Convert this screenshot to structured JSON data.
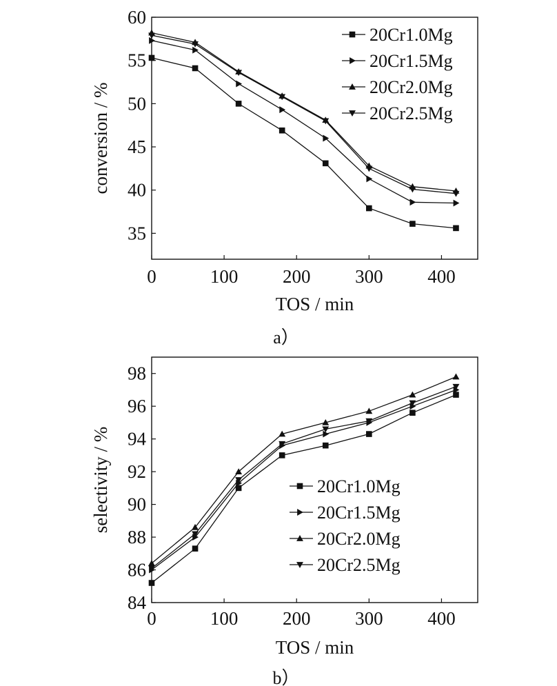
{
  "chart_data": [
    {
      "type": "line",
      "panel_label": "a）",
      "xlabel": "TOS / min",
      "ylabel": "conversion / %",
      "xlim": [
        0,
        450
      ],
      "ylim": [
        32,
        60
      ],
      "xticks": [
        0,
        100,
        200,
        300,
        400
      ],
      "yticks": [
        35,
        40,
        45,
        50,
        55,
        60
      ],
      "legend_position": "top-right",
      "x": [
        0,
        60,
        120,
        180,
        240,
        300,
        360,
        420
      ],
      "series": [
        {
          "name": "20Cr1.0Mg",
          "marker": "square",
          "values": [
            55.3,
            54.1,
            50.0,
            46.9,
            43.1,
            37.9,
            36.1,
            35.6
          ]
        },
        {
          "name": "20Cr1.5Mg",
          "marker": "triangle-right",
          "values": [
            57.3,
            56.2,
            52.3,
            49.3,
            46.0,
            41.3,
            38.6,
            38.5
          ]
        },
        {
          "name": "20Cr2.0Mg",
          "marker": "triangle-up",
          "values": [
            58.2,
            57.1,
            53.7,
            50.9,
            48.1,
            42.8,
            40.4,
            39.9
          ]
        },
        {
          "name": "20Cr2.5Mg",
          "marker": "triangle-down",
          "values": [
            57.9,
            56.9,
            53.6,
            50.8,
            48.0,
            42.5,
            40.1,
            39.6
          ]
        }
      ]
    },
    {
      "type": "line",
      "panel_label": "b）",
      "xlabel": "TOS / min",
      "ylabel": "selectivity / %",
      "xlim": [
        0,
        450
      ],
      "ylim": [
        84,
        99
      ],
      "xticks": [
        0,
        100,
        200,
        300,
        400
      ],
      "yticks": [
        84,
        86,
        88,
        90,
        92,
        94,
        96,
        98
      ],
      "legend_position": "center-right",
      "x": [
        0,
        60,
        120,
        180,
        240,
        300,
        360,
        420
      ],
      "series": [
        {
          "name": "20Cr1.0Mg",
          "marker": "square",
          "values": [
            85.2,
            87.3,
            91.0,
            93.0,
            93.6,
            94.3,
            95.6,
            96.7
          ]
        },
        {
          "name": "20Cr1.5Mg",
          "marker": "triangle-right",
          "values": [
            86.0,
            88.0,
            91.3,
            93.6,
            94.3,
            95.0,
            96.0,
            97.0
          ]
        },
        {
          "name": "20Cr2.0Mg",
          "marker": "triangle-up",
          "values": [
            86.4,
            88.6,
            92.0,
            94.3,
            95.0,
            95.7,
            96.7,
            97.8
          ]
        },
        {
          "name": "20Cr2.5Mg",
          "marker": "triangle-down",
          "values": [
            86.1,
            88.2,
            91.5,
            93.7,
            94.6,
            95.1,
            96.2,
            97.2
          ]
        }
      ]
    }
  ]
}
